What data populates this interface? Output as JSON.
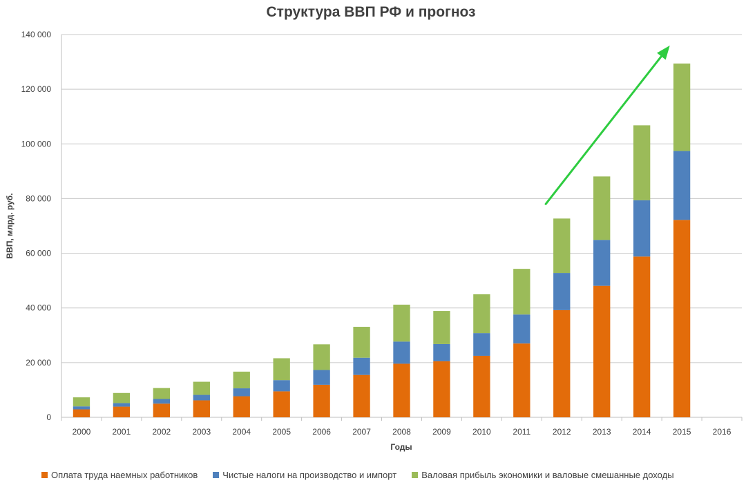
{
  "chart_data": {
    "type": "bar",
    "stacked": true,
    "title": "Структура ВВП РФ и прогноз",
    "xlabel": "Годы",
    "ylabel": "ВВП, млрд. руб.",
    "ylim": [
      0,
      140000
    ],
    "y_ticks": [
      "0",
      "20 000",
      "40 000",
      "60 000",
      "80 000",
      "100 000",
      "120 000",
      "140 000"
    ],
    "y_tick_values": [
      0,
      20000,
      40000,
      60000,
      80000,
      100000,
      120000,
      140000
    ],
    "grid": true,
    "legend_position": "bottom",
    "categories": [
      "2000",
      "2001",
      "2002",
      "2003",
      "2004",
      "2005",
      "2006",
      "2007",
      "2008",
      "2009",
      "2010",
      "2011",
      "2012",
      "2013",
      "2014",
      "2015",
      "2016"
    ],
    "series": [
      {
        "name": "Оплата труда наемных работников",
        "color": "#e36c0a",
        "values": [
          2900,
          3900,
          5000,
          6200,
          7700,
          9500,
          11900,
          15500,
          19600,
          20500,
          22500,
          27000,
          39200,
          48100,
          58800,
          72200,
          null
        ]
      },
      {
        "name": "Чистые налоги на производство и импорт",
        "color": "#4f81bd",
        "values": [
          1100,
          1300,
          1700,
          2000,
          2900,
          4100,
          5400,
          6300,
          8100,
          6300,
          8300,
          10600,
          13600,
          16800,
          20600,
          25200,
          null
        ]
      },
      {
        "name": "Валовая прибыль экономики и валовые смешанные доходы",
        "color": "#9bbb59",
        "values": [
          3300,
          3700,
          4000,
          4800,
          6100,
          8000,
          9400,
          11300,
          13500,
          12100,
          14200,
          16700,
          19900,
          23200,
          27400,
          32000,
          null
        ]
      }
    ],
    "annotations": [
      {
        "type": "arrow",
        "color": "#2ecc40",
        "description": "upward trend arrow",
        "from": {
          "x": "2012",
          "y": 78000
        },
        "to": {
          "x": "2015",
          "y": 136000
        }
      }
    ]
  }
}
